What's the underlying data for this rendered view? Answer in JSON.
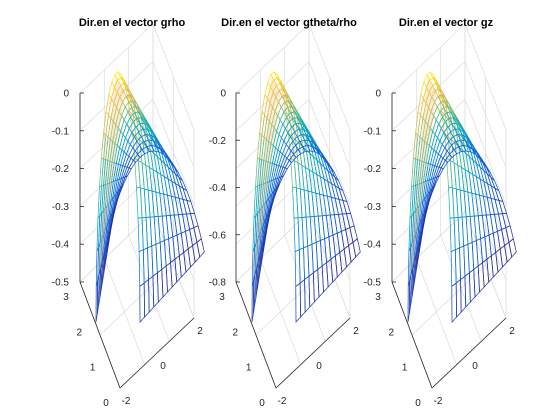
{
  "chart_data": [
    {
      "type": "surface",
      "title": "Dir.en el vector grho",
      "zlim": [
        -0.5,
        0
      ],
      "zticks": [
        "0",
        "-0.1",
        "-0.2",
        "-0.3",
        "-0.4",
        "-0.5"
      ],
      "yticks": [
        "3",
        "2",
        "1",
        "0"
      ],
      "xticks": [
        "2",
        "0",
        "-2"
      ],
      "colormap": "parula",
      "grid": true,
      "z_top": 0,
      "z_bottom": -0.5
    },
    {
      "type": "surface",
      "title": "Dir.en el vector gtheta/rho",
      "zlim": [
        -0.8,
        0
      ],
      "zticks": [
        "0",
        "-0.2",
        "-0.4",
        "-0.6",
        "-0.8"
      ],
      "yticks": [
        "3",
        "2",
        "1",
        "0"
      ],
      "xticks": [
        "2",
        "0",
        "-2"
      ],
      "colormap": "parula",
      "grid": true,
      "z_top": 0,
      "z_bottom": -0.8
    },
    {
      "type": "surface",
      "title": "Dir.en el vector gz",
      "zlim": [
        -0.5,
        0
      ],
      "zticks": [
        "0",
        "-0.1",
        "-0.2",
        "-0.3",
        "-0.4",
        "-0.5"
      ],
      "yticks": [
        "3",
        "2",
        "1",
        "0"
      ],
      "xticks": [
        "2",
        "0",
        "-2"
      ],
      "colormap": "parula",
      "grid": true,
      "z_top": 0,
      "z_bottom": -0.5
    }
  ],
  "colors": {
    "axis": "#262626",
    "grid": "#dcdcdc",
    "parula": [
      "#352a87",
      "#0f5cdd",
      "#1481d6",
      "#06a4ca",
      "#2eb7a4",
      "#87bf77",
      "#d1bb59",
      "#fec832",
      "#f9fb0e"
    ]
  }
}
